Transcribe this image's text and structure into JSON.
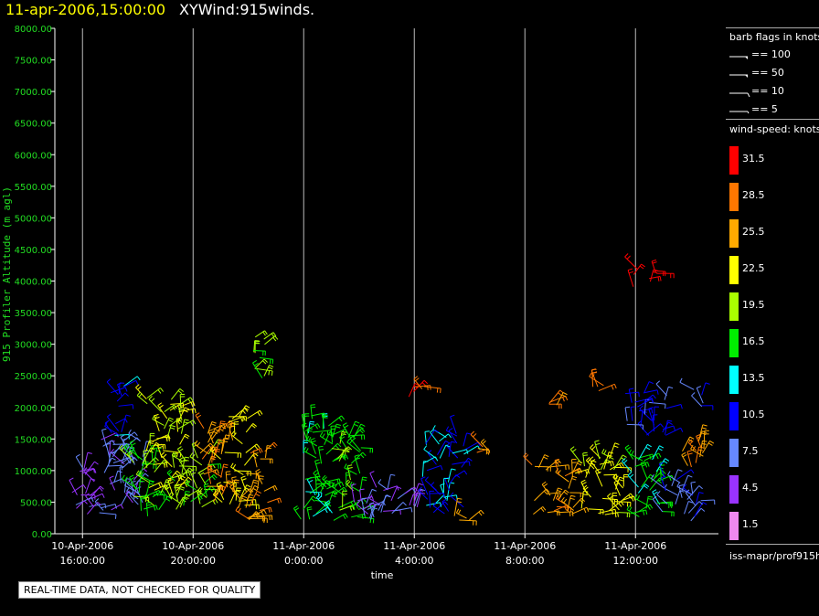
{
  "title_date": "11-apr-2006,15:00:00",
  "title_name": "XYWind:915winds.",
  "notice": "REAL-TIME DATA, NOT CHECKED FOR QUALITY",
  "legend": {
    "flags_title": "barb flags in knots",
    "flags": [
      {
        "label": "== 100",
        "value": 100
      },
      {
        "label": "== 50",
        "value": 50
      },
      {
        "label": "== 10",
        "value": 10
      },
      {
        "label": "== 5",
        "value": 5
      }
    ],
    "speed_title": "wind-speed: knots",
    "speed_bins": [
      {
        "label": "31.5",
        "color": "#ff0000"
      },
      {
        "label": "28.5",
        "color": "#ff7700"
      },
      {
        "label": "25.5",
        "color": "#ffaa00"
      },
      {
        "label": "22.5",
        "color": "#ffff00"
      },
      {
        "label": "19.5",
        "color": "#aaff00"
      },
      {
        "label": "16.5",
        "color": "#00ee00"
      },
      {
        "label": "13.5",
        "color": "#00ffff"
      },
      {
        "label": "10.5",
        "color": "#0000ff"
      },
      {
        "label": "7.5",
        "color": "#6688ff"
      },
      {
        "label": "4.5",
        "color": "#9933ff"
      },
      {
        "label": "1.5",
        "color": "#ee88ee"
      }
    ],
    "source": "iss-mapr/prof915h"
  },
  "chart_data": {
    "type": "scatter",
    "ylabel": "915 Profiler Altitude (m agl)",
    "xlabel": "time",
    "ylim": [
      0,
      8000
    ],
    "xlim_hours": [
      15.0,
      39.0
    ],
    "y_ticks": [
      "0.00",
      "500.00",
      "1000.00",
      "1500.00",
      "2000.00",
      "2500.00",
      "3000.00",
      "3500.00",
      "4000.00",
      "4500.00",
      "5000.00",
      "5500.00",
      "6000.00",
      "6500.00",
      "7000.00",
      "7500.00",
      "8000.00"
    ],
    "x_ticks": [
      {
        "hour": 16,
        "line1": "10-Apr-2006",
        "line2": "16:00:00"
      },
      {
        "hour": 20,
        "line1": "10-Apr-2006",
        "line2": "20:00:00"
      },
      {
        "hour": 24,
        "line1": "11-Apr-2006",
        "line2": "0:00:00"
      },
      {
        "hour": 28,
        "line1": "11-Apr-2006",
        "line2": "4:00:00"
      },
      {
        "hour": 32,
        "line1": "11-Apr-2006",
        "line2": "8:00:00"
      },
      {
        "hour": 36,
        "line1": "11-Apr-2006",
        "line2": "12:00:00"
      }
    ],
    "grid": "vertical",
    "wind_barb_clusters": [
      {
        "t0": 15.5,
        "t1": 16.6,
        "h0": 300,
        "h1": 1050,
        "speed": 5
      },
      {
        "t0": 16.6,
        "t1": 18.2,
        "h0": 200,
        "h1": 1500,
        "speed": 7
      },
      {
        "t0": 16.9,
        "t1": 17.5,
        "h0": 1500,
        "h1": 2550,
        "speed": 12
      },
      {
        "t0": 17.7,
        "t1": 18.8,
        "h0": 250,
        "h1": 1300,
        "speed": 17
      },
      {
        "t0": 18.3,
        "t1": 19.6,
        "h0": 500,
        "h1": 2200,
        "speed": 21
      },
      {
        "t0": 19.3,
        "t1": 20.6,
        "h0": 300,
        "h1": 1300,
        "speed": 19
      },
      {
        "t0": 20.2,
        "t1": 21.1,
        "h0": 500,
        "h1": 1700,
        "speed": 27
      },
      {
        "t0": 21.0,
        "t1": 22.0,
        "h0": 400,
        "h1": 1900,
        "speed": 24
      },
      {
        "t0": 21.9,
        "t1": 22.7,
        "h0": 200,
        "h1": 1400,
        "speed": 26
      },
      {
        "t0": 22.0,
        "t1": 22.6,
        "h0": 2400,
        "h1": 3200,
        "speed": 19
      },
      {
        "t0": 23.9,
        "t1": 25.1,
        "h0": 200,
        "h1": 1900,
        "speed": 16
      },
      {
        "t0": 25.0,
        "t1": 26.1,
        "h0": 200,
        "h1": 1600,
        "speed": 17
      },
      {
        "t0": 25.8,
        "t1": 27.5,
        "h0": 200,
        "h1": 800,
        "speed": 6
      },
      {
        "t0": 27.4,
        "t1": 28.2,
        "h0": 300,
        "h1": 700,
        "speed": 5
      },
      {
        "t0": 28.3,
        "t1": 29.8,
        "h0": 300,
        "h1": 1600,
        "speed": 11
      },
      {
        "t0": 27.8,
        "t1": 28.6,
        "h0": 2100,
        "h1": 2400,
        "speed": 31
      },
      {
        "t0": 29.4,
        "t1": 30.0,
        "h0": 200,
        "h1": 450,
        "speed": 26
      },
      {
        "t0": 30.0,
        "t1": 30.8,
        "h0": 1250,
        "h1": 1400,
        "speed": 28
      },
      {
        "t0": 32.2,
        "t1": 33.8,
        "h0": 300,
        "h1": 1100,
        "speed": 26
      },
      {
        "t0": 33.8,
        "t1": 35.6,
        "h0": 300,
        "h1": 1200,
        "speed": 22
      },
      {
        "t0": 32.8,
        "t1": 33.6,
        "h0": 1950,
        "h1": 2100,
        "speed": 28
      },
      {
        "t0": 34.2,
        "t1": 34.9,
        "h0": 2250,
        "h1": 2400,
        "speed": 28
      },
      {
        "t0": 35.6,
        "t1": 37.2,
        "h0": 1500,
        "h1": 2250,
        "speed": 10
      },
      {
        "t0": 35.9,
        "t1": 36.8,
        "h0": 3800,
        "h1": 4200,
        "speed": 32
      },
      {
        "t0": 35.8,
        "t1": 37.0,
        "h0": 200,
        "h1": 1200,
        "speed": 16
      },
      {
        "t0": 36.9,
        "t1": 38.4,
        "h0": 200,
        "h1": 900,
        "speed": 8
      },
      {
        "t0": 37.6,
        "t1": 38.5,
        "h0": 900,
        "h1": 1500,
        "speed": 27
      },
      {
        "t0": 37.8,
        "t1": 38.5,
        "h0": 2000,
        "h1": 2300,
        "speed": 9
      }
    ]
  }
}
